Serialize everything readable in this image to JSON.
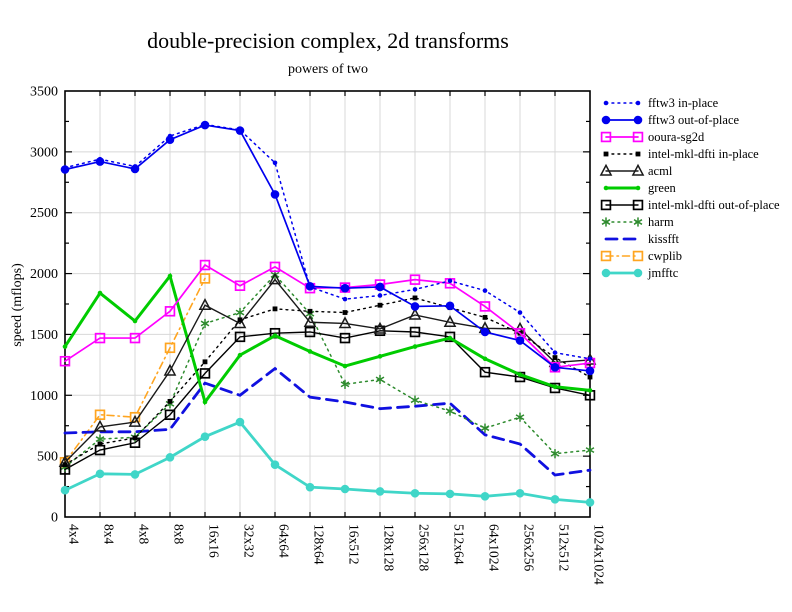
{
  "chart": {
    "title": "double-precision complex, 2d transforms",
    "subtitle": "powers of two",
    "ylabel": "speed (mflops)"
  },
  "chart_data": {
    "type": "line",
    "title": "double-precision complex, 2d transforms",
    "subtitle": "powers of two",
    "xlabel": "",
    "ylabel": "speed (mflops)",
    "ylim": [
      0,
      3500
    ],
    "ytick_step": 500,
    "grid": true,
    "legend_position": "right-outside",
    "categories": [
      "4x4",
      "8x4",
      "4x8",
      "8x8",
      "16x16",
      "32x32",
      "64x64",
      "128x64",
      "16x512",
      "128x128",
      "256x128",
      "512x64",
      "64x1024",
      "256x256",
      "512x512",
      "1024x1024"
    ],
    "series": [
      {
        "name": "fftw3 in-place",
        "color": "#0000ee",
        "line": "dotted",
        "marker": "dot",
        "width": 1.5,
        "values": [
          2870,
          2940,
          2880,
          3130,
          3225,
          3180,
          2910,
          1890,
          1790,
          1820,
          1870,
          1940,
          1860,
          1680,
          1350,
          1300
        ]
      },
      {
        "name": "fftw3 out-of-place",
        "color": "#0000ee",
        "line": "solid",
        "marker": "circle",
        "width": 1.7,
        "values": [
          2855,
          2920,
          2860,
          3100,
          3220,
          3175,
          2650,
          1895,
          1880,
          1890,
          1730,
          1735,
          1520,
          1450,
          1230,
          1200
        ]
      },
      {
        "name": "ooura-sg2d",
        "color": "#ff00ff",
        "line": "solid",
        "marker": "square-open",
        "width": 1.7,
        "values": [
          1280,
          1470,
          1470,
          1690,
          2070,
          1900,
          2055,
          1880,
          1885,
          1910,
          1950,
          1920,
          1730,
          1510,
          1230,
          1265
        ]
      },
      {
        "name": "intel-mkl-dfti in-place",
        "color": "#000000",
        "line": "dotted",
        "marker": "square-filled",
        "width": 1.4,
        "values": [
          430,
          600,
          650,
          950,
          1275,
          1620,
          1710,
          1690,
          1680,
          1740,
          1800,
          1720,
          1640,
          1510,
          1310,
          1150
        ]
      },
      {
        "name": "acml",
        "color": "#1a1a1a",
        "line": "solid",
        "marker": "triangle-open",
        "width": 1.4,
        "values": [
          450,
          740,
          780,
          1200,
          1740,
          1590,
          1950,
          1600,
          1590,
          1545,
          1660,
          1600,
          1550,
          1545,
          1270,
          1290
        ]
      },
      {
        "name": "green",
        "color": "#00cc00",
        "line": "solid",
        "marker": "dot",
        "width": 3,
        "values": [
          1400,
          1840,
          1610,
          1980,
          945,
          1330,
          1490,
          1360,
          1240,
          1320,
          1400,
          1470,
          1300,
          1170,
          1070,
          1040
        ]
      },
      {
        "name": "intel-mkl-dfti out-of-place",
        "color": "#000000",
        "line": "solid",
        "marker": "square-open",
        "width": 1.4,
        "values": [
          390,
          550,
          610,
          840,
          1180,
          1480,
          1510,
          1520,
          1470,
          1530,
          1520,
          1480,
          1190,
          1150,
          1060,
          1000
        ]
      },
      {
        "name": "harm",
        "color": "#2e8b2e",
        "line": "dotted",
        "marker": "asterisk",
        "width": 1.5,
        "values": [
          410,
          640,
          655,
          930,
          1590,
          1680,
          1990,
          1670,
          1090,
          1130,
          960,
          870,
          730,
          820,
          520,
          550
        ]
      },
      {
        "name": "kissfft",
        "color": "#1010e0",
        "line": "dashed",
        "marker": "none",
        "width": 2.8,
        "values": [
          690,
          700,
          700,
          720,
          1100,
          1000,
          1220,
          985,
          945,
          890,
          910,
          935,
          675,
          600,
          345,
          385
        ]
      },
      {
        "name": "cwplib",
        "color": "#ffa520",
        "line": "dashdot",
        "marker": "square-open",
        "width": 1.6,
        "values": [
          450,
          840,
          820,
          1390,
          1960
        ]
      },
      {
        "name": "jmfftc",
        "color": "#40d6c8",
        "line": "solid",
        "marker": "circle",
        "width": 2.8,
        "values": [
          220,
          355,
          350,
          490,
          660,
          780,
          430,
          245,
          230,
          210,
          195,
          190,
          170,
          195,
          145,
          120
        ]
      }
    ]
  }
}
